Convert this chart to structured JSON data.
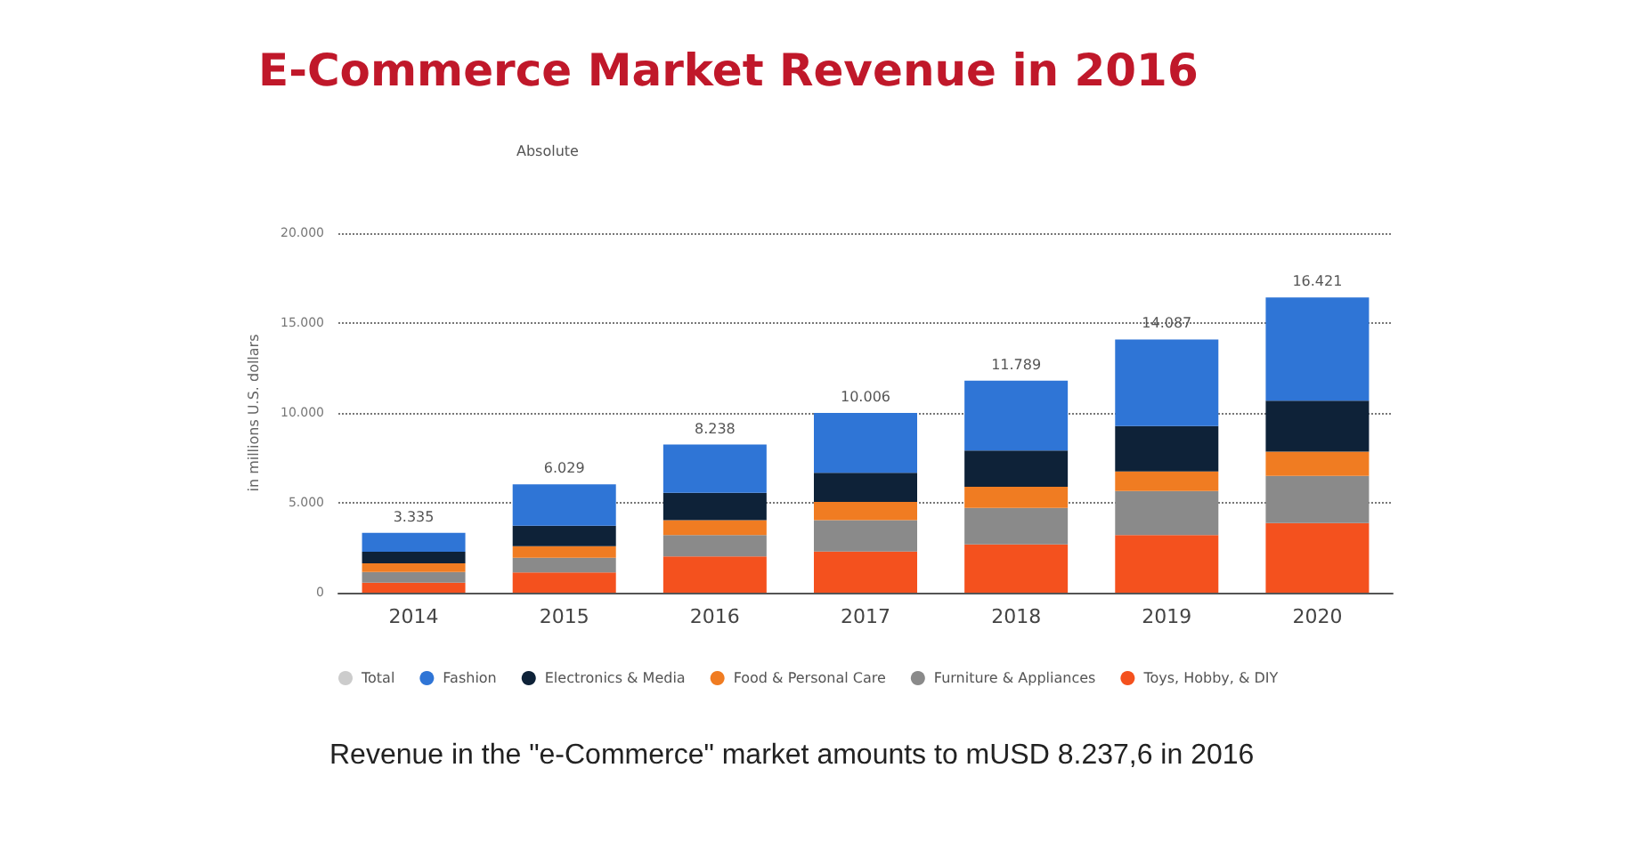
{
  "chart_data": {
    "type": "bar",
    "title": "E-Commerce Market Revenue in 2016",
    "subtitle": "Absolute",
    "ylabel": "in millions U.S. dollars",
    "categories": [
      "2014",
      "2015",
      "2016",
      "2017",
      "2018",
      "2019",
      "2020"
    ],
    "stacked": true,
    "series": [
      {
        "name": "Toys, Hobby, & DIY",
        "color": "#f4511e",
        "values": [
          560,
          1130,
          2020,
          2290,
          2690,
          3200,
          3870
        ]
      },
      {
        "name": "Furniture & Appliances",
        "color": "#8a8a8a",
        "values": [
          590,
          810,
          1180,
          1750,
          2020,
          2460,
          2630
        ]
      },
      {
        "name": "Food & Personal Care",
        "color": "#f07c22",
        "values": [
          480,
          650,
          840,
          1010,
          1180,
          1080,
          1350
        ]
      },
      {
        "name": "Electronics & Media",
        "color": "#0e2238",
        "values": [
          650,
          1130,
          1515,
          1615,
          2020,
          2525,
          2830
        ]
      },
      {
        "name": "Fashion",
        "color": "#2f75d6",
        "values": [
          1055,
          2309,
          2683,
          3341,
          3879,
          4822,
          5741
        ]
      },
      {
        "name": "Total",
        "color": "#cccccc",
        "values": [
          null,
          null,
          null,
          null,
          null,
          null,
          null
        ]
      }
    ],
    "totals": [
      "3.335",
      "6.029",
      "8.238",
      "10.006",
      "11.789",
      "14.087",
      "16.421"
    ],
    "ylim": [
      0,
      20000
    ],
    "yticks": [
      {
        "value": 0,
        "label": "0"
      },
      {
        "value": 5000,
        "label": "5.000"
      },
      {
        "value": 10000,
        "label": "10.000"
      },
      {
        "value": 15000,
        "label": "15.000"
      },
      {
        "value": 20000,
        "label": "20.000"
      }
    ],
    "grid": "y",
    "legend": "bottom",
    "annotations": [
      "Revenue in the \"e-Commerce\" market amounts to mUSD 8.237,6 in 2016"
    ]
  }
}
